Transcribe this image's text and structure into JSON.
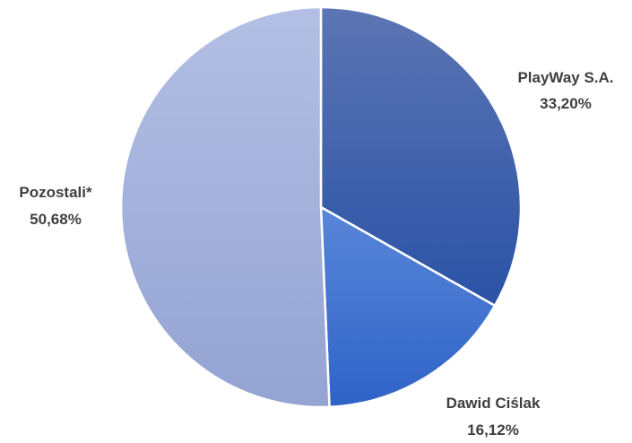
{
  "chart_data": {
    "type": "pie",
    "title": "",
    "slices": [
      {
        "label": "PlayWay S.A.",
        "value": 33.2,
        "value_text": "33,20%",
        "color_start": "#5c75b3",
        "color_end": "#2a52a6"
      },
      {
        "label": "Dawid Ciślak",
        "value": 16.12,
        "value_text": "16,12%",
        "color_start": "#5a86d9",
        "color_end": "#2e63c6"
      },
      {
        "label": "Pozostali*",
        "value": 50.68,
        "value_text": "50,68%",
        "color_start": "#b3bfe4",
        "color_end": "#94a3d2"
      }
    ],
    "start_angle": "12 o'clock",
    "direction": "clockwise",
    "legend": "none",
    "label_position": "outside"
  }
}
